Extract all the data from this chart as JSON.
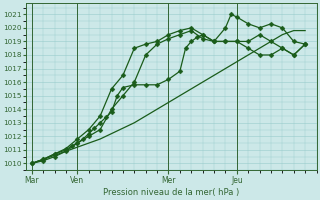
{
  "xlabel": "Pression niveau de la mer( hPa )",
  "bg_color": "#cce8e8",
  "grid_color": "#99cccc",
  "line_color": "#1a5c1a",
  "ylim": [
    1009.5,
    1021.8
  ],
  "xlim": [
    -2,
    100
  ],
  "yticks": [
    1010,
    1011,
    1012,
    1013,
    1014,
    1015,
    1016,
    1017,
    1018,
    1019,
    1020,
    1021
  ],
  "xtick_positions": [
    0,
    16,
    48,
    72
  ],
  "xtick_labels": [
    "Mar",
    "Ven",
    "Mer",
    "Jeu"
  ],
  "vlines": [
    0,
    16,
    48,
    72
  ],
  "series": [
    {
      "x": [
        0,
        4,
        8,
        12,
        16,
        20,
        24,
        28,
        32,
        36,
        40,
        44,
        48,
        52,
        56,
        60,
        64,
        68,
        72,
        76,
        80,
        84,
        88,
        92,
        96
      ],
      "y": [
        1010.0,
        1010.3,
        1010.6,
        1010.9,
        1011.2,
        1011.5,
        1011.8,
        1012.2,
        1012.6,
        1013.0,
        1013.5,
        1014.0,
        1014.5,
        1015.0,
        1015.5,
        1016.0,
        1016.5,
        1017.0,
        1017.5,
        1018.0,
        1018.5,
        1019.0,
        1019.5,
        1019.8,
        1019.8
      ],
      "marker": false
    },
    {
      "x": [
        0,
        4,
        8,
        12,
        14,
        16,
        18,
        20,
        22,
        24,
        26,
        28,
        30,
        32,
        36,
        40,
        44,
        48,
        52,
        54,
        56,
        58,
        60,
        64,
        68,
        72,
        76,
        80,
        84,
        88,
        92,
        96
      ],
      "y": [
        1010.0,
        1010.3,
        1010.7,
        1011.0,
        1011.3,
        1011.5,
        1011.8,
        1012.2,
        1012.6,
        1013.0,
        1013.4,
        1013.8,
        1015.0,
        1015.6,
        1015.8,
        1015.8,
        1015.8,
        1016.2,
        1016.8,
        1018.5,
        1019.0,
        1019.3,
        1019.5,
        1019.0,
        1019.0,
        1019.0,
        1019.0,
        1019.5,
        1019.0,
        1018.5,
        1018.0,
        1018.8
      ],
      "marker": true
    },
    {
      "x": [
        0,
        4,
        8,
        12,
        16,
        20,
        24,
        28,
        32,
        36,
        40,
        44,
        48,
        52,
        56,
        60,
        64,
        68,
        70,
        72,
        76,
        80,
        84,
        88,
        92,
        96
      ],
      "y": [
        1010.0,
        1010.3,
        1010.7,
        1011.1,
        1011.8,
        1012.5,
        1013.5,
        1015.5,
        1016.5,
        1018.5,
        1018.8,
        1019.0,
        1019.5,
        1019.8,
        1020.0,
        1019.5,
        1019.0,
        1020.0,
        1021.0,
        1020.8,
        1020.3,
        1020.0,
        1020.3,
        1020.0,
        1019.0,
        1018.8
      ],
      "marker": true
    },
    {
      "x": [
        0,
        4,
        8,
        12,
        16,
        20,
        24,
        28,
        32,
        36,
        40,
        44,
        48,
        52,
        56,
        60,
        64,
        68,
        72,
        76,
        80,
        84,
        88,
        92,
        96
      ],
      "y": [
        1010.0,
        1010.2,
        1010.5,
        1010.9,
        1011.5,
        1012.0,
        1012.5,
        1014.0,
        1015.0,
        1016.0,
        1018.0,
        1018.8,
        1019.2,
        1019.5,
        1019.8,
        1019.2,
        1019.0,
        1019.0,
        1019.0,
        1018.5,
        1018.0,
        1018.0,
        1018.5,
        1018.0,
        1018.8
      ],
      "marker": true
    }
  ],
  "markersize": 2.5,
  "linewidth": 0.9
}
